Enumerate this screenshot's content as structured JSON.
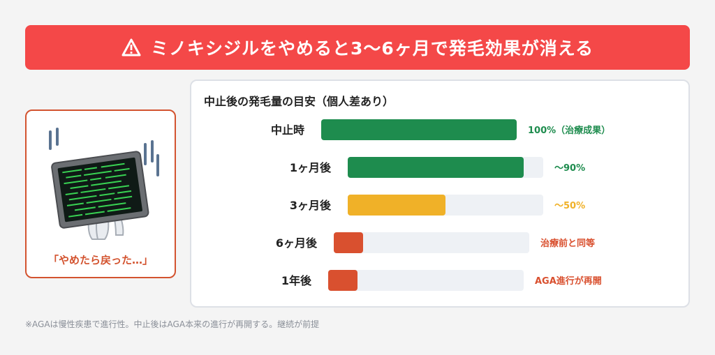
{
  "banner": {
    "text": "ミノキシジルをやめると3〜6ヶ月で発毛効果が消える",
    "icon": "warning-triangle-icon"
  },
  "illustration": {
    "icon": "hair-growth-monitor-icon",
    "caption": "「やめたら戻った…」"
  },
  "chart_data": {
    "type": "bar",
    "orientation": "horizontal",
    "title": "中止後の発毛量の目安（個人差あり）",
    "categories": [
      "中止時",
      "1ヶ月後",
      "3ヶ月後",
      "6ヶ月後",
      "1年後"
    ],
    "values": [
      100,
      90,
      50,
      15,
      15
    ],
    "value_labels": [
      "100%（治療成果）",
      "〜90%",
      "〜50%",
      "治療前と同等",
      "AGA進行が再開"
    ],
    "colors": [
      "#1e8c4e",
      "#1e8c4e",
      "#f0b128",
      "#d9502f",
      "#d9502f"
    ],
    "xlim": [
      0,
      100
    ]
  },
  "footnote": "※AGAは慢性疾患で進行性。中止後はAGA本来の進行が再開する。継続が前提"
}
